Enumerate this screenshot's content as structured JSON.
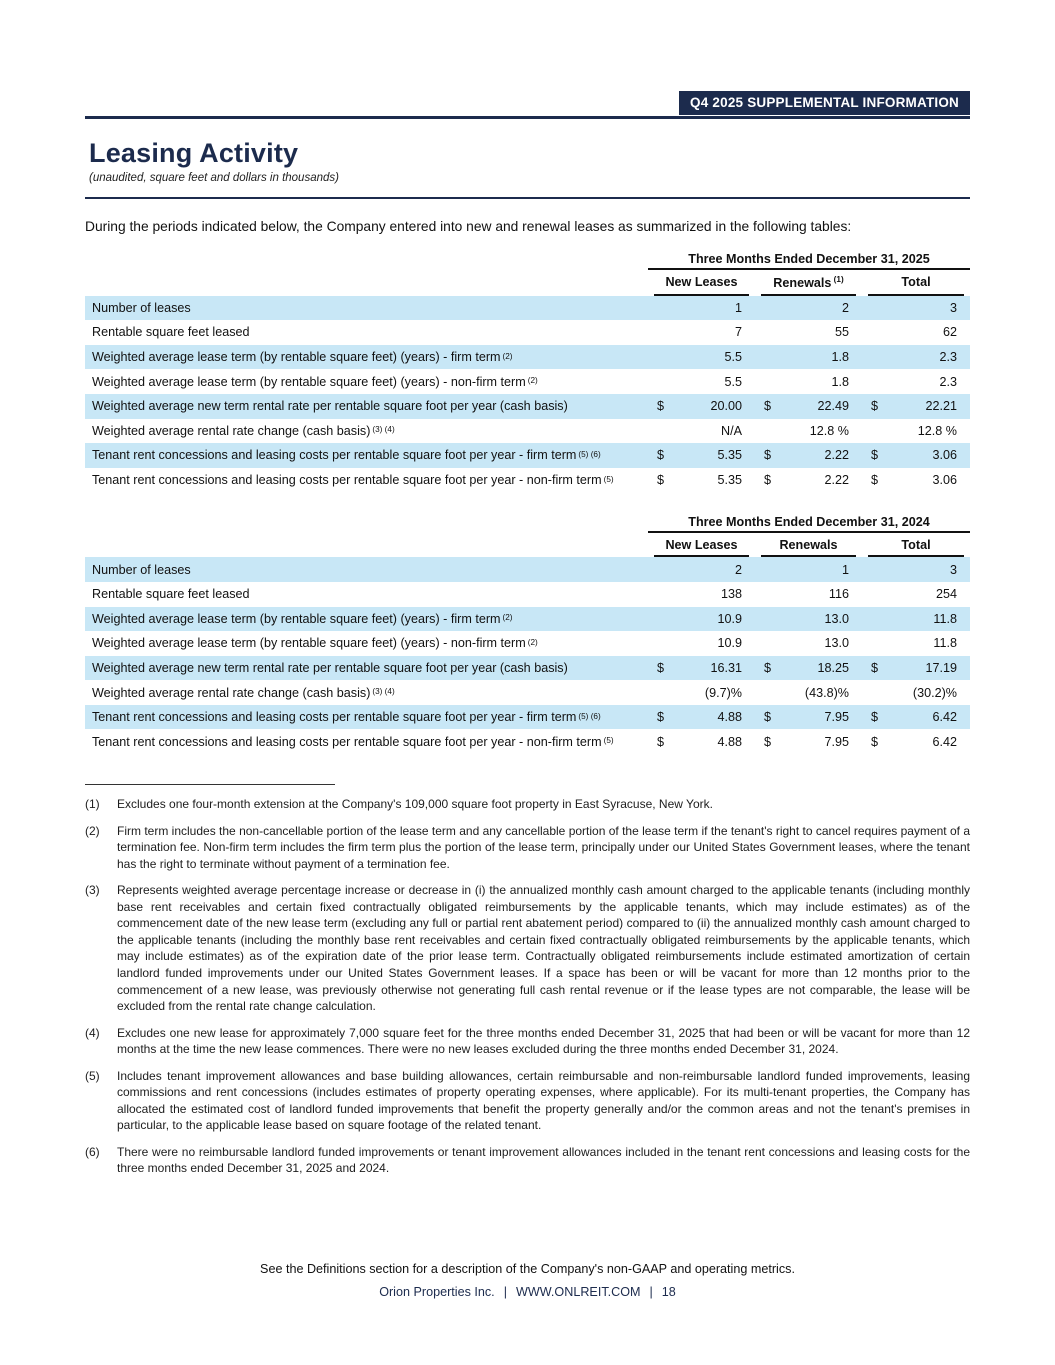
{
  "banner": {
    "label": "Q4 2025 SUPPLEMENTAL INFORMATION"
  },
  "page": {
    "title": "Leasing Activity",
    "subtitle": "(unaudited, square feet and dollars in thousands)",
    "intro": "During the periods indicated below, the Company entered into new and renewal leases as summarized in the following tables:"
  },
  "colors": {
    "navy": "#1c2b4d",
    "row_blue": "#c8e7f6"
  },
  "tables": [
    {
      "period": "Three Months Ended December 31, 2025",
      "columns": [
        {
          "label": "New Leases",
          "sup": ""
        },
        {
          "label": "Renewals",
          "sup": "(1)"
        },
        {
          "label": "Total",
          "sup": ""
        }
      ],
      "rows": [
        {
          "label": "Number of leases",
          "sup": "",
          "dollar": false,
          "values": [
            "1",
            "2",
            "3"
          ]
        },
        {
          "label": "Rentable square feet leased",
          "sup": "",
          "dollar": false,
          "values": [
            "7",
            "55",
            "62"
          ]
        },
        {
          "label": "Weighted average lease term (by rentable square feet) (years) - firm term",
          "sup": "(2)",
          "dollar": false,
          "values": [
            "5.5",
            "1.8",
            "2.3"
          ]
        },
        {
          "label": "Weighted average lease term (by rentable square feet) (years) - non-firm term",
          "sup": "(2)",
          "dollar": false,
          "values": [
            "5.5",
            "1.8",
            "2.3"
          ]
        },
        {
          "label": "Weighted average new term rental rate per rentable square foot per year (cash basis)",
          "sup": "",
          "dollar": true,
          "values": [
            "20.00",
            "22.49",
            "22.21"
          ]
        },
        {
          "label": "Weighted average rental rate change (cash basis)",
          "sup": "(3) (4)",
          "dollar": false,
          "values": [
            "N/A",
            "12.8 %",
            "12.8 %"
          ]
        },
        {
          "label": "Tenant rent concessions and leasing costs per rentable square foot per year - firm term",
          "sup": "(5) (6)",
          "dollar": true,
          "values": [
            "5.35",
            "2.22",
            "3.06"
          ]
        },
        {
          "label": "Tenant rent concessions and leasing costs per rentable square foot per year - non-firm term",
          "sup": "(5)",
          "dollar": true,
          "values": [
            "5.35",
            "2.22",
            "3.06"
          ]
        }
      ]
    },
    {
      "period": "Three Months Ended December 31, 2024",
      "columns": [
        {
          "label": "New Leases",
          "sup": ""
        },
        {
          "label": "Renewals",
          "sup": ""
        },
        {
          "label": "Total",
          "sup": ""
        }
      ],
      "rows": [
        {
          "label": "Number of leases",
          "sup": "",
          "dollar": false,
          "values": [
            "2",
            "1",
            "3"
          ]
        },
        {
          "label": "Rentable square feet leased",
          "sup": "",
          "dollar": false,
          "values": [
            "138",
            "116",
            "254"
          ]
        },
        {
          "label": "Weighted average lease term (by rentable square feet) (years) - firm term",
          "sup": "(2)",
          "dollar": false,
          "values": [
            "10.9",
            "13.0",
            "11.8"
          ]
        },
        {
          "label": "Weighted average lease term (by rentable square feet) (years) - non-firm term",
          "sup": "(2)",
          "dollar": false,
          "values": [
            "10.9",
            "13.0",
            "11.8"
          ]
        },
        {
          "label": "Weighted average new term rental rate per rentable square foot per year (cash basis)",
          "sup": "",
          "dollar": true,
          "values": [
            "16.31",
            "18.25",
            "17.19"
          ]
        },
        {
          "label": "Weighted average rental rate change (cash basis)",
          "sup": "(3) (4)",
          "dollar": false,
          "values": [
            "(9.7)%",
            "(43.8)%",
            "(30.2)%"
          ]
        },
        {
          "label": "Tenant rent concessions and leasing costs per rentable square foot per year - firm term",
          "sup": "(5) (6)",
          "dollar": true,
          "values": [
            "4.88",
            "7.95",
            "6.42"
          ]
        },
        {
          "label": "Tenant rent concessions and leasing costs per rentable square foot per year - non-firm term",
          "sup": "(5)",
          "dollar": true,
          "values": [
            "4.88",
            "7.95",
            "6.42"
          ]
        }
      ]
    }
  ],
  "footnotes": [
    {
      "num": "(1)",
      "text": "Excludes one four-month extension at the Company's 109,000 square foot property in East Syracuse, New York."
    },
    {
      "num": "(2)",
      "text": "Firm term includes the non-cancellable portion of the lease term and any cancellable portion of the lease term if the tenant's right to cancel requires payment of a termination fee. Non-firm term includes the firm term plus the portion of the lease term, principally under our United States Government leases, where the tenant has the right to terminate without payment of a termination fee."
    },
    {
      "num": "(3)",
      "text": "Represents weighted average percentage increase or decrease in (i) the annualized monthly cash amount charged to the applicable tenants (including monthly base rent receivables and certain fixed contractually obligated reimbursements by the applicable tenants, which may include estimates) as of the commencement date of the new lease term (excluding any full or partial rent abatement period) compared to (ii) the annualized monthly cash amount charged to the applicable tenants (including the monthly base rent receivables and certain fixed contractually obligated reimbursements by the applicable tenants, which may include estimates) as of the expiration date of the prior lease term. Contractually obligated reimbursements include estimated amortization of certain landlord funded improvements under our United States Government leases. If a space has been or will be vacant for more than 12 months prior to the commencement of a new lease, was previously otherwise not generating full cash rental revenue or if the lease types are not comparable, the lease will be excluded from the rental rate change calculation."
    },
    {
      "num": "(4)",
      "text": "Excludes one new lease for approximately 7,000 square feet for the three months ended December 31, 2025 that had been or will be vacant for more than 12 months at the time the new lease commences. There were no new leases excluded during the three months ended December 31, 2024."
    },
    {
      "num": "(5)",
      "text": "Includes tenant improvement allowances and base building allowances, certain reimbursable and non-reimbursable landlord funded improvements, leasing commissions and rent concessions (includes estimates of property operating expenses, where applicable). For its multi-tenant properties, the Company has allocated the estimated cost of landlord funded improvements that benefit the property generally and/or the common areas and not the tenant's premises in particular, to the applicable lease based on square footage of the related tenant."
    },
    {
      "num": "(6)",
      "text": "There were no reimbursable landlord funded improvements or tenant improvement allowances included in the tenant rent concessions and leasing costs for the three months ended December 31, 2025 and 2024."
    }
  ],
  "footer": {
    "note": "See the Definitions section for a description of the Company's non-GAAP and operating metrics.",
    "company": "Orion Properties Inc.",
    "website": "WWW.ONLREIT.COM",
    "page_number": "18",
    "separator": "|"
  }
}
